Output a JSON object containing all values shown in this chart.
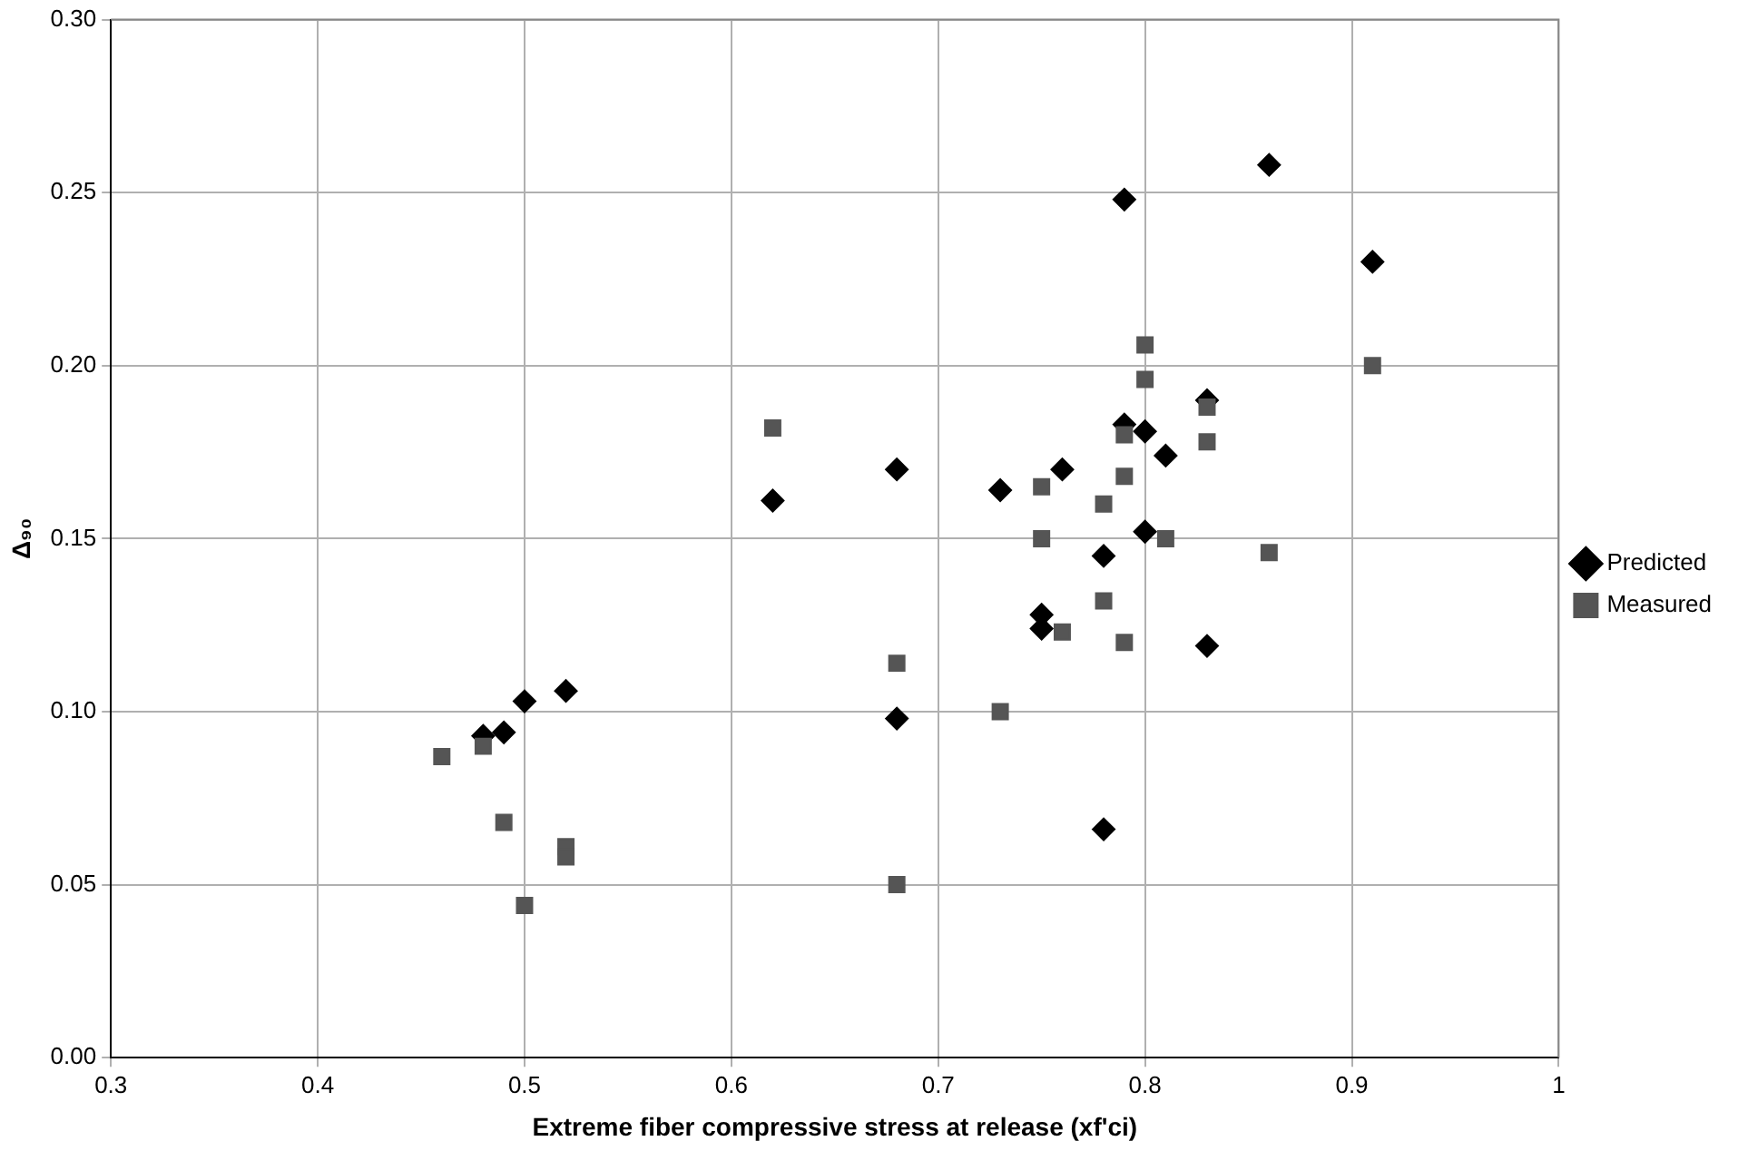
{
  "chart_data": {
    "type": "scatter",
    "xlabel": "Extreme fiber compressive stress at release (xf'ci)",
    "ylabel": "Δ₉₀",
    "xlim": [
      0.3,
      1
    ],
    "xticks": [
      0.3,
      0.4,
      0.5,
      0.6,
      0.7,
      0.8,
      0.9,
      1
    ],
    "ylim": [
      0,
      0.3
    ],
    "yticks": [
      {
        "value": 0,
        "label": "0.00"
      },
      {
        "value": 0.05,
        "label": "0.05"
      },
      {
        "value": 0.1,
        "label": "0.10"
      },
      {
        "value": 0.15,
        "label": "0.15"
      },
      {
        "value": 0.2,
        "label": "0.20"
      },
      {
        "value": 0.25,
        "label": "0.25"
      },
      {
        "value": 0.3,
        "label": "0.30"
      }
    ],
    "grid": true,
    "legend": "right",
    "series": [
      {
        "name": "Predicted",
        "color": "#000000",
        "marker": "diamond",
        "x": [
          0.48,
          0.49,
          0.5,
          0.52,
          0.62,
          0.68,
          0.68,
          0.73,
          0.75,
          0.75,
          0.76,
          0.78,
          0.78,
          0.79,
          0.79,
          0.8,
          0.8,
          0.81,
          0.83,
          0.83,
          0.86,
          0.91
        ],
        "values": [
          0.093,
          0.094,
          0.103,
          0.106,
          0.161,
          0.17,
          0.098,
          0.164,
          0.128,
          0.124,
          0.17,
          0.145,
          0.066,
          0.248,
          0.183,
          0.181,
          0.152,
          0.174,
          0.19,
          0.119,
          0.258,
          0.23
        ]
      },
      {
        "name": "Measured",
        "color": "#555555",
        "marker": "square",
        "x": [
          0.46,
          0.48,
          0.49,
          0.5,
          0.52,
          0.52,
          0.62,
          0.68,
          0.68,
          0.73,
          0.75,
          0.75,
          0.76,
          0.78,
          0.78,
          0.79,
          0.79,
          0.79,
          0.8,
          0.8,
          0.81,
          0.83,
          0.83,
          0.86,
          0.91
        ],
        "values": [
          0.087,
          0.09,
          0.068,
          0.044,
          0.061,
          0.058,
          0.182,
          0.114,
          0.05,
          0.1,
          0.165,
          0.15,
          0.123,
          0.16,
          0.132,
          0.18,
          0.168,
          0.12,
          0.206,
          0.196,
          0.15,
          0.188,
          0.178,
          0.146,
          0.2
        ]
      }
    ]
  }
}
